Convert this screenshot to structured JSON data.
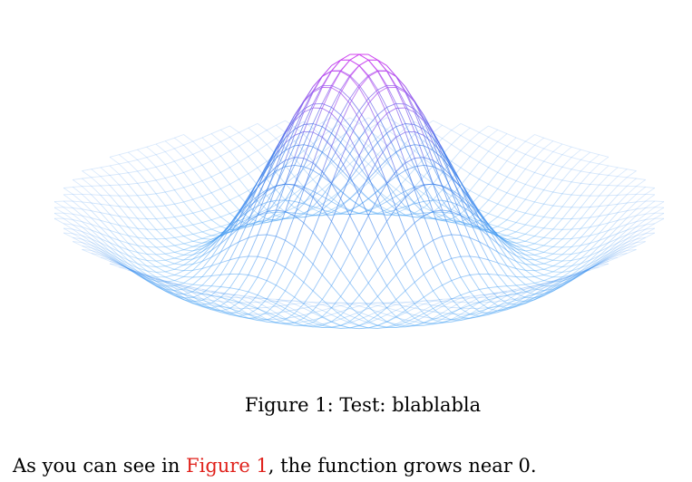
{
  "figure": {
    "number_label": "Figure 1:",
    "caption": "Test: blablabla",
    "colors": {
      "low": "#4aa6f5",
      "mid": "#2a6fe6",
      "high": "#d43cf0"
    }
  },
  "paragraph": {
    "before_ref": "As you can see in ",
    "ref_text": "Figure 1",
    "after_ref": ", the function grows near 0."
  }
}
